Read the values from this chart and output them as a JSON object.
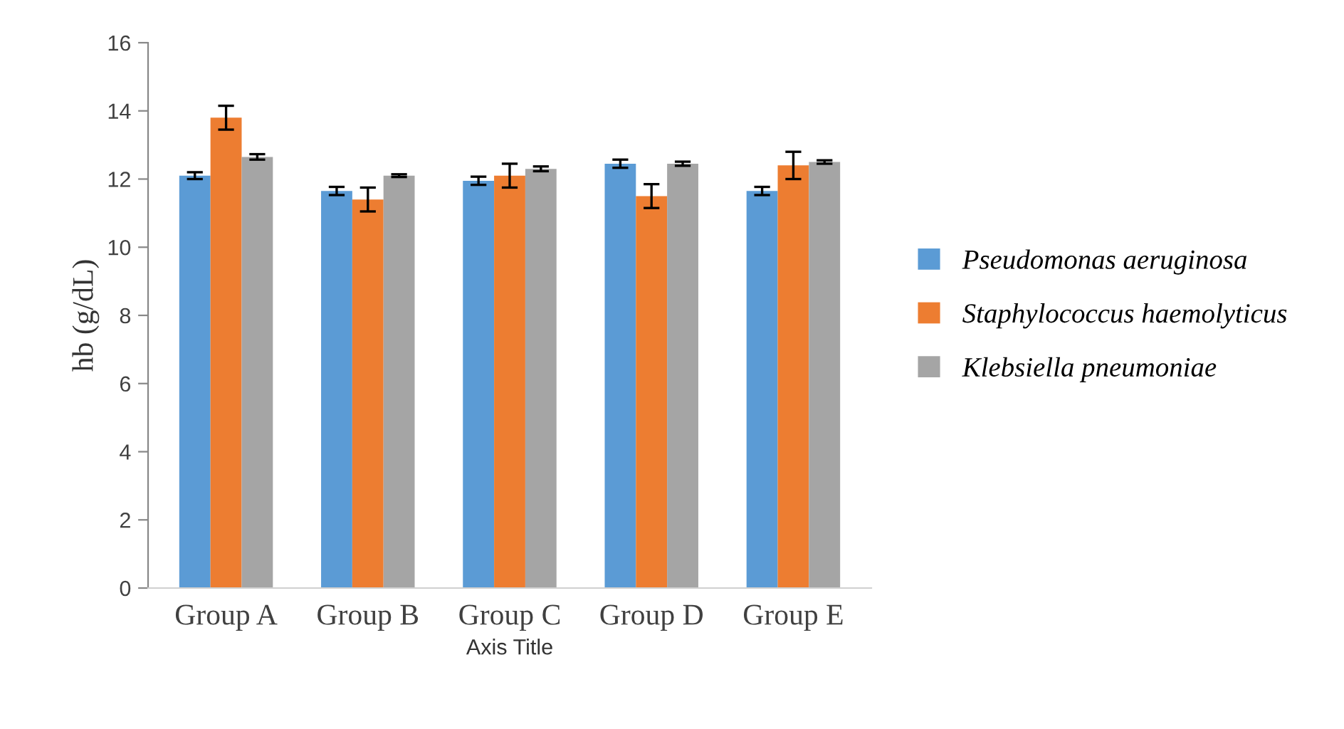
{
  "chart_data": {
    "type": "bar",
    "xlabel": "Axis Title",
    "ylabel": "hb (g/dL)",
    "categories": [
      "Group A",
      "Group B",
      "Group C",
      "Group D",
      "Group E"
    ],
    "series": [
      {
        "name": "Pseudomonas aeruginosa",
        "color": "#5b9bd5",
        "values": [
          12.1,
          11.65,
          11.95,
          12.45,
          11.65
        ],
        "errors": [
          0.1,
          0.12,
          0.12,
          0.12,
          0.12
        ]
      },
      {
        "name": "Staphylococcus haemolyticus",
        "color": "#ed7d31",
        "values": [
          13.8,
          11.4,
          12.1,
          11.5,
          12.4
        ],
        "errors": [
          0.35,
          0.35,
          0.35,
          0.35,
          0.4
        ]
      },
      {
        "name": "Klebsiella pneumoniae",
        "color": "#a5a5a5",
        "values": [
          12.65,
          12.1,
          12.3,
          12.45,
          12.5
        ],
        "errors": [
          0.08,
          0.04,
          0.07,
          0.06,
          0.05
        ]
      }
    ],
    "ylim": [
      0,
      16
    ],
    "yticks": [
      0,
      2,
      4,
      6,
      8,
      10,
      12,
      14,
      16
    ],
    "grid": false,
    "legend": "right"
  }
}
